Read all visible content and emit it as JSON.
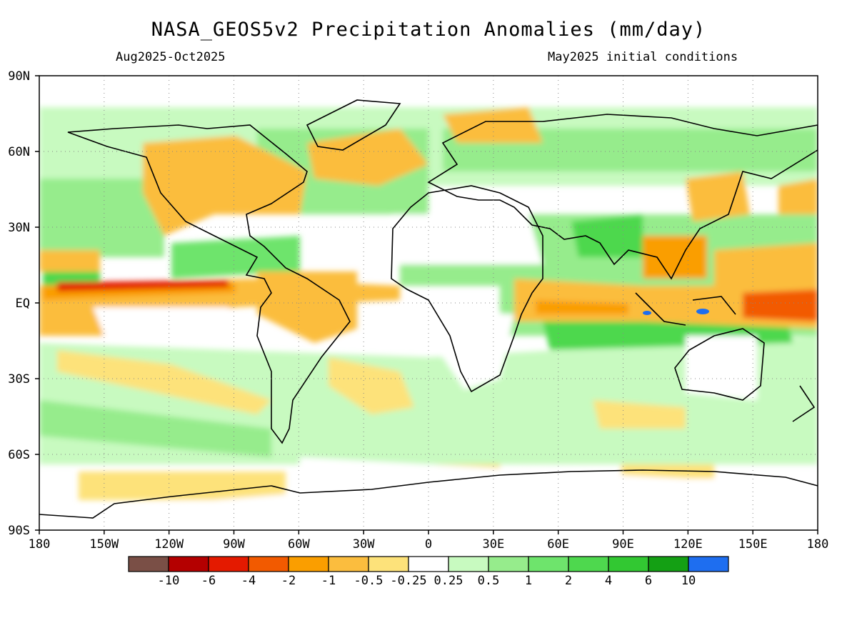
{
  "title": "NASA_GEOS5v2 Precipitation Anomalies (mm/day)",
  "subtitle_left": "Aug2025-Oct2025",
  "subtitle_right": "May2025 initial conditions",
  "map": {
    "projection": "equirectangular",
    "lon_range": [
      -180,
      180
    ],
    "lat_range": [
      -90,
      90
    ],
    "grid": "dotted",
    "lat_labels": [
      "90N",
      "60N",
      "30N",
      "EQ",
      "30S",
      "60S",
      "90S"
    ],
    "lon_labels": [
      "180",
      "150W",
      "120W",
      "90W",
      "60W",
      "30W",
      "0",
      "30E",
      "60E",
      "90E",
      "120E",
      "150E",
      "180"
    ]
  },
  "colorbar": {
    "colors": [
      "#7a4f46",
      "#b40000",
      "#e41a00",
      "#f25a00",
      "#fa9e00",
      "#fbbd3e",
      "#fde27a",
      "#ffffff",
      "#c8fac0",
      "#96ec8c",
      "#6ee46c",
      "#4ed84e",
      "#32c832",
      "#14a014",
      "#1e6ef0"
    ],
    "labels": [
      "-10",
      "-6",
      "-4",
      "-2",
      "-1",
      "-0.5",
      "-0.25",
      "0.25",
      "0.5",
      "1",
      "2",
      "4",
      "6",
      "10"
    ]
  }
}
